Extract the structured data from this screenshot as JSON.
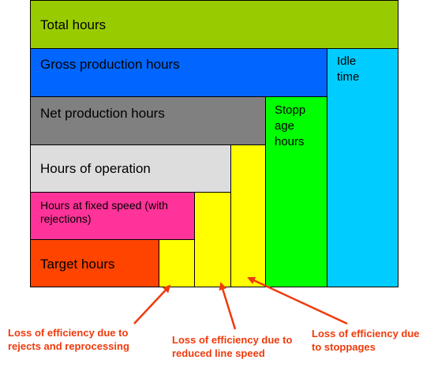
{
  "blocks": {
    "total_hours": "Total hours",
    "gross_production_hours": "Gross production hours",
    "idle_time": "Idle time",
    "net_production_hours": "Net production hours",
    "stoppage_hours": "Stopp age hours",
    "hours_of_operation": "Hours of operation",
    "hours_fixed_speed": "Hours at fixed speed (with rejections)",
    "target_hours": "Target hours"
  },
  "annotations": {
    "rejects": "Loss of efficiency due to rejects and reprocessing",
    "line_speed": "Loss of efficiency due to reduced line speed",
    "stoppages": "Loss of efficiency due to stoppages"
  },
  "colors": {
    "total": "#99cc00",
    "gross": "#0066ff",
    "idle": "#00ccff",
    "net": "#808080",
    "stoppage": "#00ff00",
    "operation": "#dddddd",
    "fixed_speed": "#ff3399",
    "target": "#ff4400",
    "loss": "#ffff00",
    "annotation": "#f03a0c"
  }
}
